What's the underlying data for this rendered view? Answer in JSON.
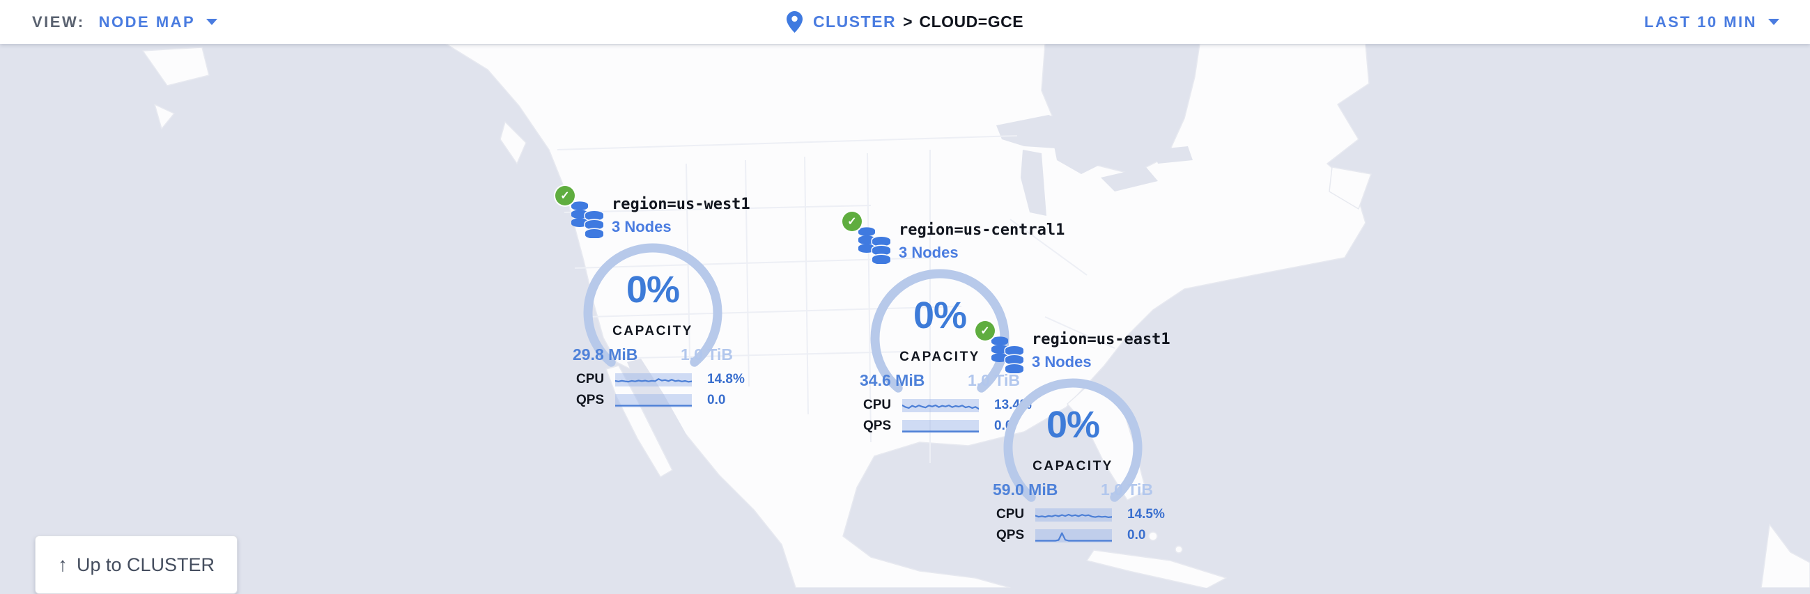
{
  "header": {
    "view_label": "VIEW:",
    "view_value": "NODE MAP",
    "breadcrumb_root": "CLUSTER",
    "breadcrumb_sep": ">",
    "breadcrumb_current": "CLOUD=GCE",
    "time_range": "LAST 10 MIN"
  },
  "map": {
    "up_button_arrow": "↑",
    "up_button_label": "Up to CLUSTER"
  },
  "icons": {
    "healthy_check": "✓"
  },
  "colors": {
    "primary_blue": "#4a7ce0",
    "gauge_blue": "#3d7bd8",
    "arc_light_blue": "#b7c9ea",
    "muted_blue": "#b2c7ed",
    "healthy_green": "#5fad3f",
    "ocean": "#e0e3ed",
    "land": "#fcfcfd",
    "dark_text": "#12161f"
  },
  "regions": [
    {
      "name": "region=us-west1",
      "nodes": "3 Nodes",
      "capacity_pct": "0%",
      "capacity_label": "CAPACITY",
      "capacity_used": "29.8 MiB",
      "capacity_total": "1.0 TiB",
      "cpu_label": "CPU",
      "cpu_value": "14.8%",
      "qps_label": "QPS",
      "qps_value": "0.0",
      "cpu_spark": [
        0.42,
        0.36,
        0.44,
        0.38,
        0.34,
        0.43,
        0.37,
        0.46,
        0.4,
        0.45,
        0.37,
        0.44,
        0.4,
        0.64,
        0.46,
        0.52,
        0.41,
        0.56,
        0.4,
        0.46,
        0.36,
        0.42,
        0.32,
        0.38
      ],
      "qps_spark": [
        0,
        0,
        0,
        0,
        0,
        0,
        0,
        0,
        0,
        0,
        0,
        0,
        0,
        0,
        0,
        0,
        0,
        0,
        0,
        0,
        0,
        0,
        0,
        0
      ]
    },
    {
      "name": "region=us-central1",
      "nodes": "3 Nodes",
      "capacity_pct": "0%",
      "capacity_label": "CAPACITY",
      "capacity_used": "34.6 MiB",
      "capacity_total": "1.0 TiB",
      "cpu_label": "CPU",
      "cpu_value": "13.4%",
      "qps_label": "QPS",
      "qps_value": "0.0",
      "cpu_spark": [
        0.58,
        0.38,
        0.28,
        0.52,
        0.38,
        0.56,
        0.42,
        0.33,
        0.55,
        0.44,
        0.58,
        0.38,
        0.52,
        0.44,
        0.57,
        0.37,
        0.5,
        0.42,
        0.55,
        0.34,
        0.44,
        0.28,
        0.4,
        0.18
      ],
      "qps_spark": [
        0,
        0,
        0,
        0,
        0,
        0,
        0,
        0,
        0,
        0,
        0,
        0,
        0,
        0,
        0,
        0,
        0,
        0,
        0,
        0,
        0,
        0,
        0,
        0
      ]
    },
    {
      "name": "region=us-east1",
      "nodes": "3 Nodes",
      "capacity_pct": "0%",
      "capacity_label": "CAPACITY",
      "capacity_used": "59.0 MiB",
      "capacity_total": "1.0 TiB",
      "cpu_label": "CPU",
      "cpu_value": "14.5%",
      "qps_label": "QPS",
      "qps_value": "0.0",
      "cpu_spark": [
        0.46,
        0.34,
        0.4,
        0.32,
        0.44,
        0.38,
        0.5,
        0.4,
        0.54,
        0.42,
        0.58,
        0.44,
        0.52,
        0.4,
        0.56,
        0.46,
        0.52,
        0.36,
        0.3,
        0.38,
        0.32,
        0.36,
        0.28,
        0.32
      ],
      "qps_spark": [
        0,
        0,
        0,
        0,
        0,
        0,
        0,
        0.08,
        0.85,
        0.1,
        0,
        0,
        0,
        0,
        0,
        0,
        0,
        0,
        0,
        0,
        0,
        0,
        0,
        0
      ]
    }
  ]
}
